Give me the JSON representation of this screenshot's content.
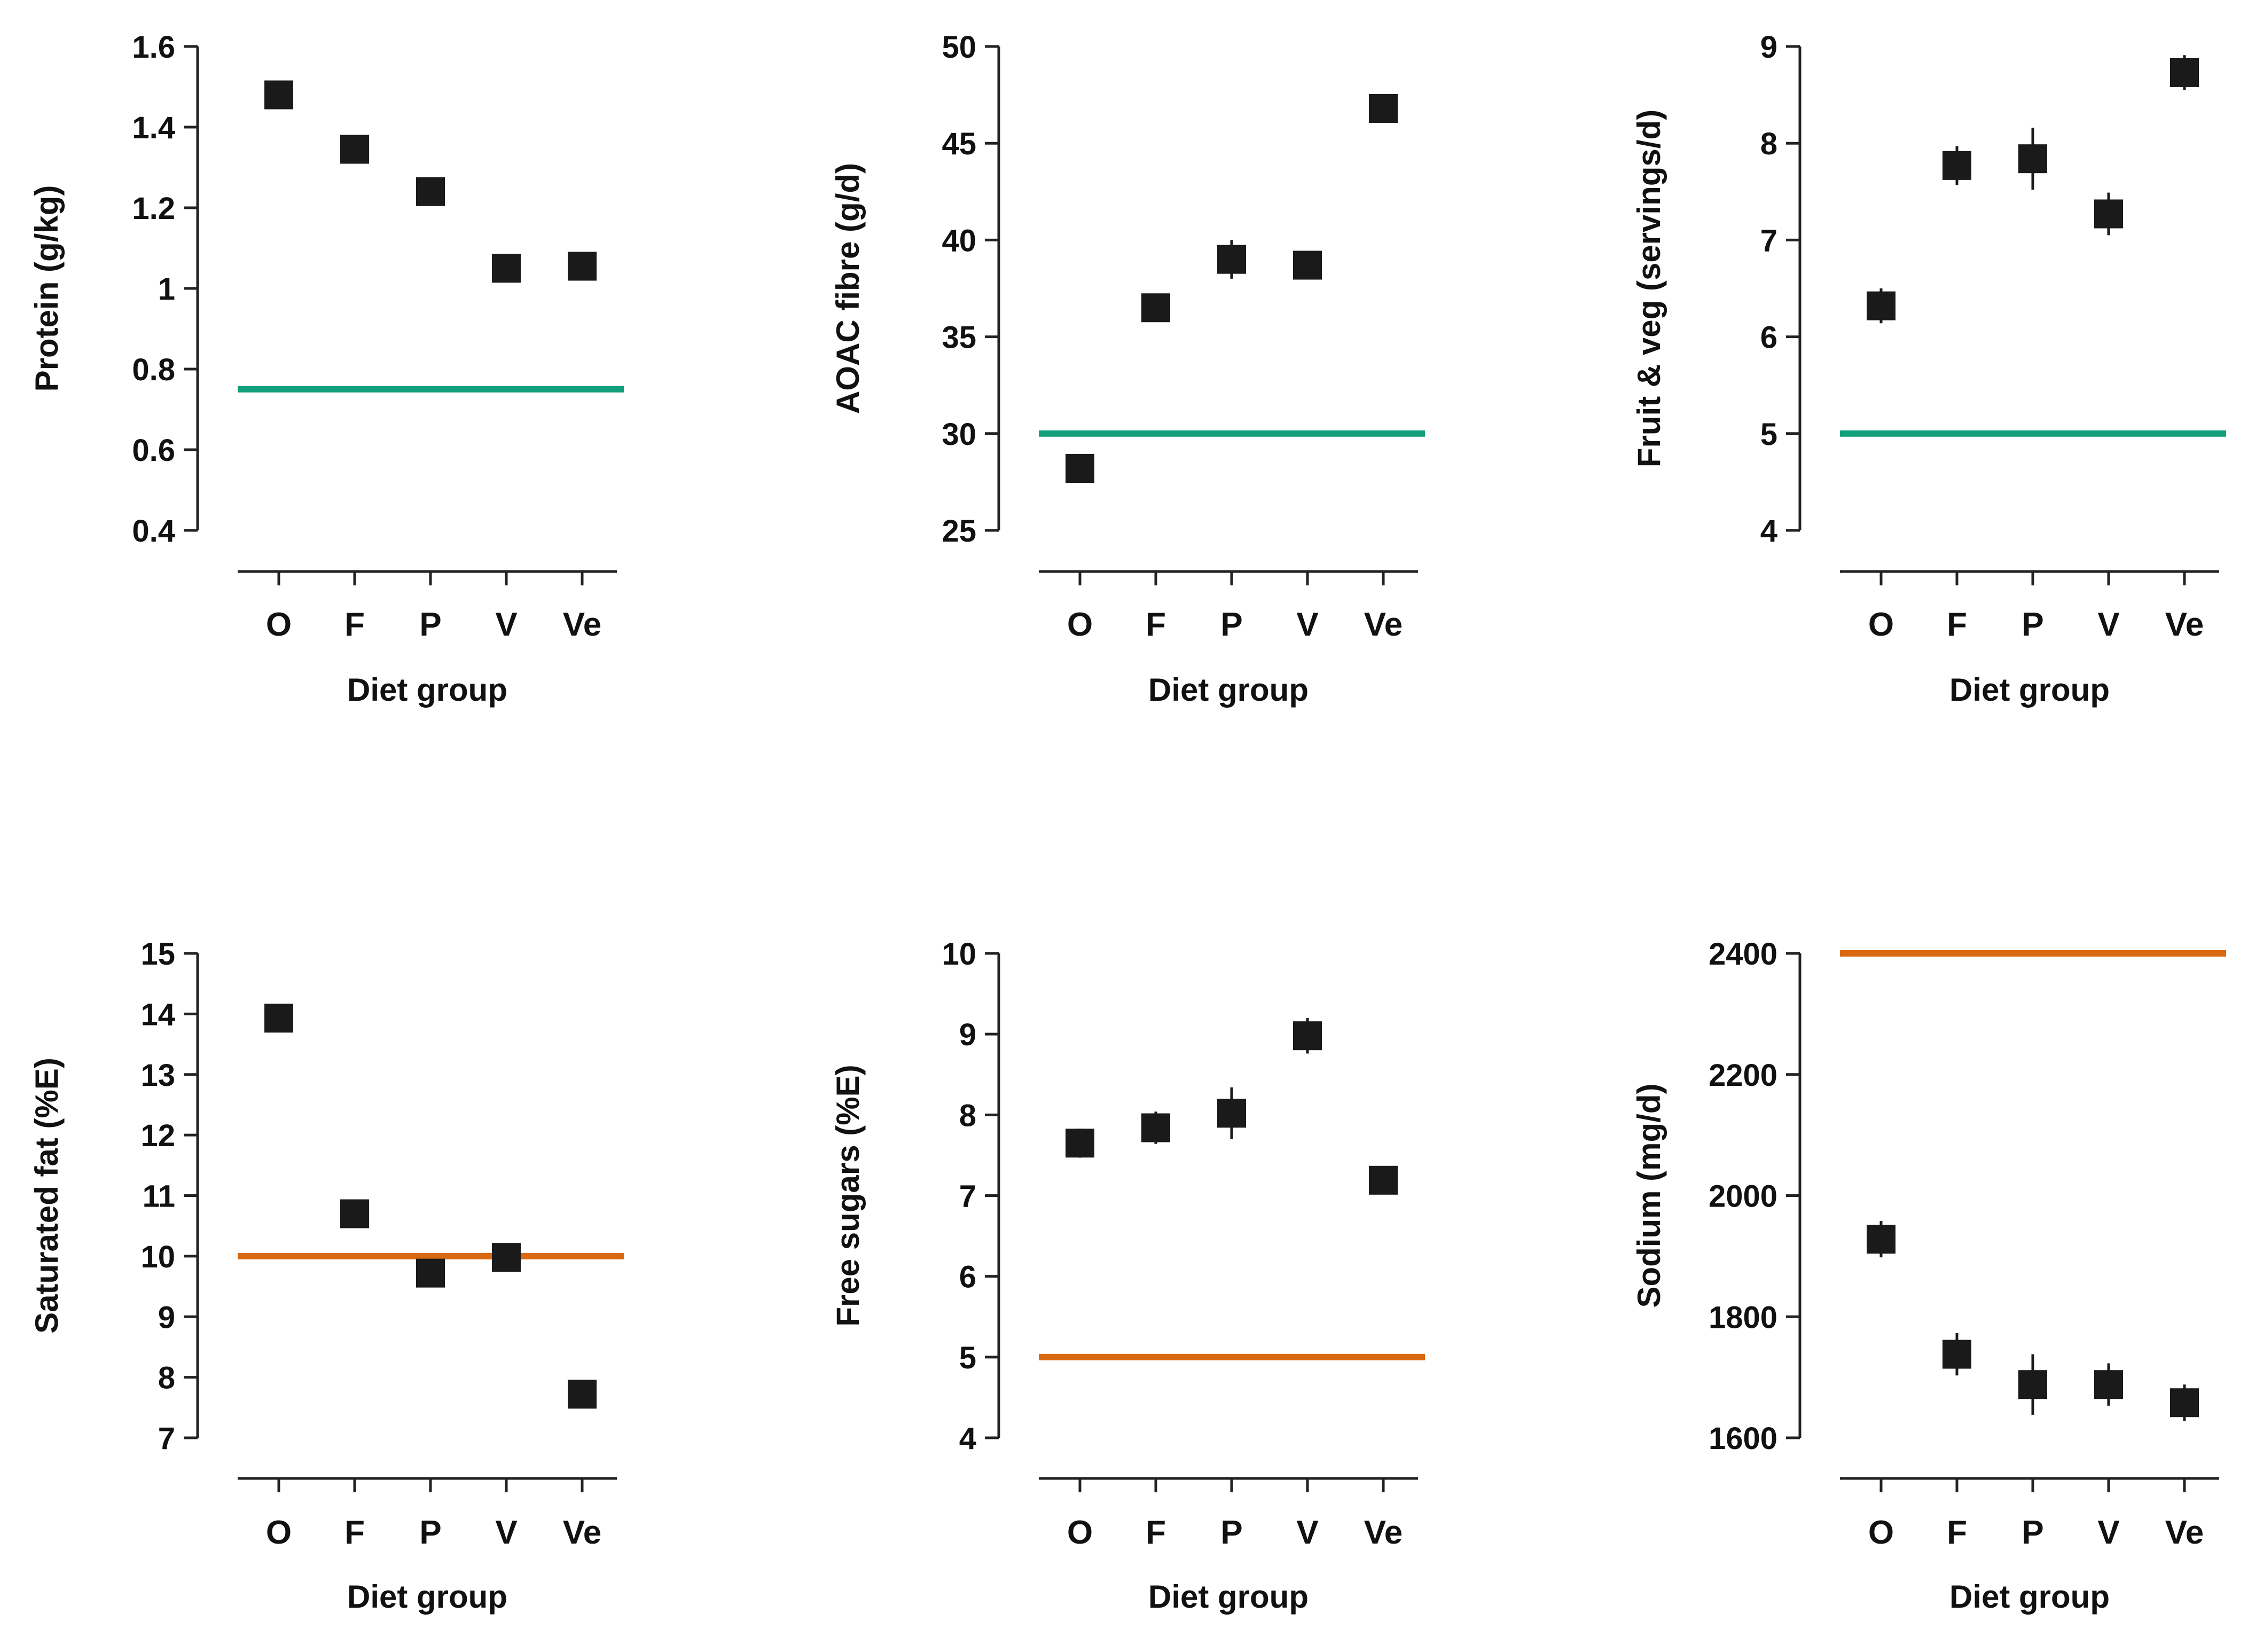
{
  "colors": {
    "marker": "#1a1a1a",
    "axis": "#222222",
    "ref_green": "#12a07c",
    "ref_orange": "#d96910"
  },
  "chart_data": [
    {
      "type": "scatter",
      "categories": [
        "O",
        "F",
        "P",
        "V",
        "Ve"
      ],
      "xlabel": "Diet group",
      "ylabel": "Protein (g/kg)",
      "ylim": [
        0.4,
        1.6
      ],
      "yticks": [
        0.4,
        0.6,
        0.8,
        1,
        1.2,
        1.4,
        1.6
      ],
      "ytick_labels": [
        "0.4",
        "0.6",
        "0.8",
        "1",
        "1.2",
        "1.4",
        "1.6"
      ],
      "values": [
        1.48,
        1.345,
        1.24,
        1.05,
        1.055
      ],
      "errors": [
        0.015,
        0.015,
        0.025,
        0.015,
        0.015
      ],
      "reference_line": {
        "value": 0.75,
        "color": "green"
      }
    },
    {
      "type": "scatter",
      "categories": [
        "O",
        "F",
        "P",
        "V",
        "Ve"
      ],
      "xlabel": "Diet group",
      "ylabel": "AOAC fibre (g/d)",
      "ylim": [
        25,
        50
      ],
      "yticks": [
        25,
        30,
        35,
        40,
        45,
        50
      ],
      "ytick_labels": [
        "25",
        "30",
        "35",
        "40",
        "45",
        "50"
      ],
      "values": [
        28.2,
        36.5,
        39.0,
        38.7,
        46.8
      ],
      "errors": [
        0.3,
        0.4,
        1.0,
        0.4,
        0.4
      ],
      "reference_line": {
        "value": 30,
        "color": "green"
      }
    },
    {
      "type": "scatter",
      "categories": [
        "O",
        "F",
        "P",
        "V",
        "Ve"
      ],
      "xlabel": "Diet group",
      "ylabel": "Fruit & veg (servings/d)",
      "ylim": [
        4,
        9
      ],
      "yticks": [
        4,
        5,
        6,
        7,
        8,
        9
      ],
      "ytick_labels": [
        "4",
        "5",
        "6",
        "7",
        "8",
        "9"
      ],
      "values": [
        6.32,
        7.77,
        7.84,
        7.27,
        8.73
      ],
      "errors": [
        0.18,
        0.2,
        0.32,
        0.22,
        0.18
      ],
      "reference_line": {
        "value": 5,
        "color": "green"
      }
    },
    {
      "type": "scatter",
      "categories": [
        "O",
        "F",
        "P",
        "V",
        "Ve"
      ],
      "xlabel": "Diet group",
      "ylabel": "Saturated fat (%E)",
      "ylim": [
        7,
        15
      ],
      "yticks": [
        7,
        8,
        9,
        10,
        11,
        12,
        13,
        14,
        15
      ],
      "ytick_labels": [
        "7",
        "8",
        "9",
        "10",
        "11",
        "12",
        "13",
        "14",
        "15"
      ],
      "values": [
        13.93,
        10.7,
        9.72,
        9.98,
        7.72
      ],
      "errors": [
        0.08,
        0.1,
        0.22,
        0.12,
        0.08
      ],
      "reference_line": {
        "value": 10,
        "color": "orange"
      }
    },
    {
      "type": "scatter",
      "categories": [
        "O",
        "F",
        "P",
        "V",
        "Ve"
      ],
      "xlabel": "Diet group",
      "ylabel": "Free sugars (%E)",
      "ylim": [
        4,
        10
      ],
      "yticks": [
        4,
        5,
        6,
        7,
        8,
        9,
        10
      ],
      "ytick_labels": [
        "4",
        "5",
        "6",
        "7",
        "8",
        "9",
        "10"
      ],
      "values": [
        7.65,
        7.84,
        8.02,
        8.98,
        7.19
      ],
      "errors": [
        0.18,
        0.2,
        0.32,
        0.22,
        0.16
      ],
      "reference_line": {
        "value": 5,
        "color": "orange"
      }
    },
    {
      "type": "scatter",
      "categories": [
        "O",
        "F",
        "P",
        "V",
        "Ve"
      ],
      "xlabel": "Diet group",
      "ylabel": "Sodium (mg/d)",
      "ylim": [
        1600,
        2400
      ],
      "yticks": [
        1600,
        1800,
        2000,
        2200,
        2400
      ],
      "ytick_labels": [
        "1600",
        "1800",
        "2000",
        "2200",
        "2400"
      ],
      "values": [
        1928,
        1738,
        1688,
        1688,
        1658
      ],
      "errors": [
        30,
        35,
        50,
        35,
        30
      ],
      "reference_line": {
        "value": 2400,
        "color": "orange"
      }
    }
  ]
}
